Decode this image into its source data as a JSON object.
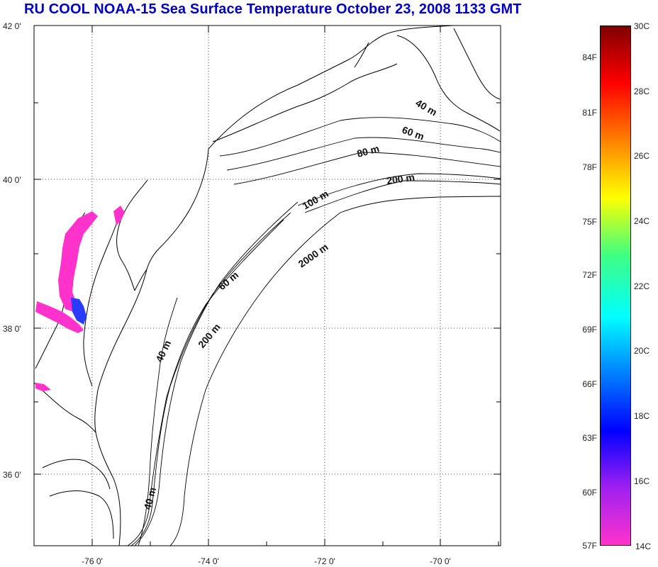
{
  "title": "RU COOL  NOAA-15 Sea Surface Temperature October 23, 2008 1133 GMT",
  "map": {
    "lat_labels": [
      "42 0'",
      "40 0'",
      "38 0'",
      "36 0'"
    ],
    "lon_labels": [
      "-76 0'",
      "-74 0'",
      "-72 0'",
      "-70 0'"
    ],
    "contour_labels": [
      "40 m",
      "60 m",
      "80 m",
      "200 m",
      "100 m",
      "2000 m",
      "60 m",
      "200 m",
      "40 m",
      "40 m"
    ],
    "land_color": "#ffffff",
    "coast_color": "#000000",
    "sst_fill_color": "#ff33cc",
    "sst_warm_patch_color": "#2a3cff"
  },
  "colorbar": {
    "celsius_labels": [
      "30C",
      "28C",
      "26C",
      "24C",
      "22C",
      "20C",
      "18C",
      "16C",
      "14C"
    ],
    "fahrenheit_labels": [
      "84F",
      "81F",
      "78F",
      "75F",
      "72F",
      "69F",
      "66F",
      "63F",
      "60F",
      "57F"
    ],
    "colors": [
      "#800000",
      "#ff0000",
      "#ff8000",
      "#ffff00",
      "#40ff80",
      "#00ffff",
      "#0080ff",
      "#0000ff",
      "#a020f0",
      "#ff33cc"
    ]
  }
}
